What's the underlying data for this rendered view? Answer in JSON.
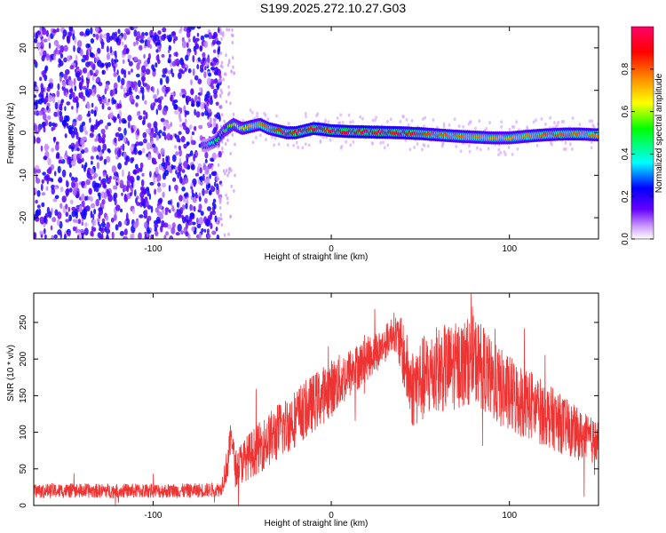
{
  "title": "S199.2025.272.10.27.G03",
  "chart_data": [
    {
      "type": "heatmap",
      "xlabel": "Height of straight line (km)",
      "ylabel": "Frequency (Hz)",
      "xlim": [
        -167,
        150
      ],
      "ylim": [
        -25,
        25
      ],
      "x_ticks": [
        -100,
        0,
        100
      ],
      "y_ticks": [
        -20,
        -10,
        0,
        10,
        20
      ],
      "colorbar": {
        "label": "Normalized spectral amplitude",
        "range": [
          0.0,
          1.0
        ],
        "ticks": [
          0.0,
          0.2,
          0.4,
          0.6,
          0.8
        ],
        "tick_labels": [
          "0.0",
          "0.2",
          "0.4",
          "0.6",
          "0.8"
        ],
        "colors": [
          "#ffffff",
          "#cc99ff",
          "#6600ff",
          "#0000ff",
          "#00ffff",
          "#00ff00",
          "#ffff00",
          "#ff8800",
          "#ff0000",
          "#ff0066"
        ]
      },
      "noise_region": {
        "x_range": [
          -167,
          -62
        ],
        "freq_range": [
          -25,
          25
        ],
        "amplitude_range": [
          0.05,
          0.25
        ]
      },
      "signal_ridge": {
        "x": [
          -70,
          -65,
          -60,
          -55,
          -50,
          -45,
          -40,
          -35,
          -30,
          -25,
          -20,
          -15,
          -10,
          -5,
          0,
          10,
          20,
          30,
          40,
          50,
          60,
          70,
          80,
          90,
          100,
          110,
          120,
          130,
          140,
          150
        ],
        "frequency": [
          -3,
          -2,
          0.5,
          2,
          1,
          1.5,
          2,
          1,
          0.5,
          0,
          0,
          0.5,
          1,
          0.8,
          0.5,
          0.3,
          0.2,
          0.1,
          0,
          -0.2,
          -0.5,
          -0.8,
          -1,
          -1.2,
          -1.2,
          -0.8,
          -0.5,
          -0.3,
          -0.3,
          -0.5
        ],
        "amplitude": [
          0.3,
          0.45,
          0.55,
          0.6,
          0.65,
          0.7,
          0.75,
          0.8,
          0.85,
          0.88,
          0.9,
          0.9,
          0.92,
          0.92,
          0.93,
          0.95,
          0.95,
          0.93,
          0.9,
          0.85,
          0.8,
          0.78,
          0.75,
          0.72,
          0.7,
          0.75,
          0.8,
          0.8,
          0.78,
          0.75
        ]
      }
    },
    {
      "type": "line",
      "xlabel": "Height of straight line (km)",
      "ylabel": "SNR (10 * v/v)",
      "xlim": [
        -167,
        150
      ],
      "ylim": [
        0,
        290
      ],
      "x_ticks": [
        -100,
        0,
        100
      ],
      "y_ticks": [
        0,
        50,
        100,
        150,
        200,
        250
      ],
      "series_color": "#ee3333",
      "envelope": {
        "x": [
          -167,
          -140,
          -100,
          -80,
          -62,
          -58,
          -56,
          -54,
          -50,
          -40,
          -30,
          -20,
          -10,
          0,
          10,
          20,
          30,
          35,
          40,
          45,
          50,
          60,
          70,
          80,
          85,
          90,
          100,
          110,
          120,
          130,
          140,
          150
        ],
        "mean": [
          20,
          20,
          20,
          20,
          22,
          60,
          100,
          50,
          60,
          80,
          100,
          120,
          140,
          160,
          180,
          200,
          220,
          240,
          210,
          160,
          170,
          185,
          190,
          200,
          190,
          170,
          150,
          140,
          125,
          110,
          95,
          85
        ],
        "spread": [
          10,
          10,
          10,
          10,
          10,
          25,
          20,
          25,
          30,
          35,
          40,
          40,
          40,
          40,
          35,
          30,
          25,
          25,
          45,
          55,
          60,
          60,
          60,
          60,
          60,
          55,
          55,
          50,
          45,
          40,
          35,
          30
        ]
      }
    }
  ]
}
